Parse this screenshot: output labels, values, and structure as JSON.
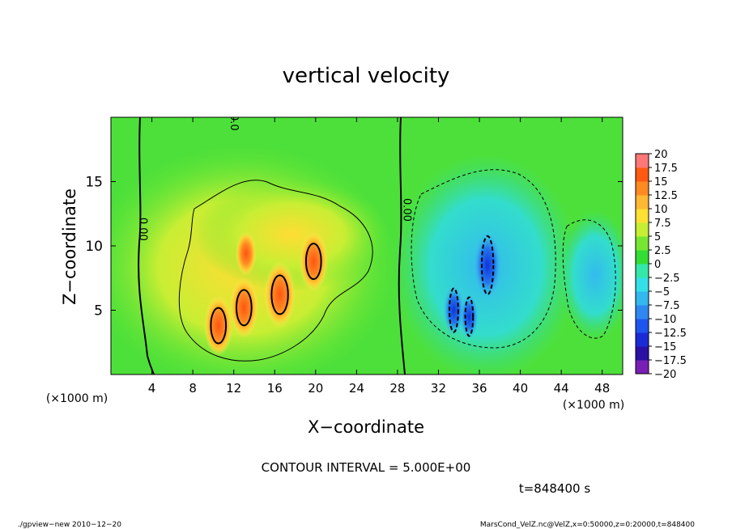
{
  "chart_data": {
    "type": "heatmap",
    "title": "vertical velocity",
    "xlabel": "X−coordinate",
    "ylabel": "Z−coordinate",
    "x_unit_left": "(×1000 m)",
    "x_unit_right": "(×1000 m)",
    "xlim": [
      0,
      50
    ],
    "ylim": [
      0,
      20
    ],
    "x_ticks": [
      4,
      8,
      12,
      16,
      20,
      24,
      28,
      32,
      36,
      40,
      44,
      48
    ],
    "y_ticks": [
      5,
      10,
      15
    ],
    "colorbar_levels": [
      -20,
      -17.5,
      -15,
      -12.5,
      -10,
      -7.5,
      -5,
      -2.5,
      0,
      2.5,
      5,
      7.5,
      10,
      12.5,
      15,
      17.5,
      20
    ],
    "colorbar_labels": [
      "20",
      "17.5",
      "15",
      "12.5",
      "10",
      "7.5",
      "5",
      "2.5",
      "0",
      "−2.5",
      "−5",
      "−7.5",
      "−10",
      "−12.5",
      "−15",
      "−17.5",
      "−20"
    ],
    "contour_labels": [
      {
        "text": "0.00",
        "x": 2.8,
        "z": 11.3
      },
      {
        "text": "0.00",
        "x": 28.6,
        "z": 12.8
      },
      {
        "text": "0.0",
        "x": 11.7,
        "z": 19.6
      }
    ],
    "contour_interval_text": "CONTOUR INTERVAL = 5.000E+00",
    "updrafts": [
      {
        "x": 10.5,
        "z": 3.8,
        "w": 11
      },
      {
        "x": 13.0,
        "z": 5.2,
        "w": 11
      },
      {
        "x": 16.5,
        "z": 6.2,
        "w": 12
      },
      {
        "x": 19.8,
        "z": 8.8,
        "w": 11
      },
      {
        "x": 13.2,
        "z": 9.4,
        "w": 8
      }
    ],
    "downdrafts": [
      {
        "x": 36.8,
        "z": 8.5,
        "w": -12
      },
      {
        "x": 33.5,
        "z": 5.0,
        "w": -9
      },
      {
        "x": 35.0,
        "z": 4.5,
        "w": -8
      }
    ]
  },
  "time_label": "t=848400 s",
  "footer_left": "./gpview−new   2010−12−20",
  "footer_right": "MarsCond_VelZ.nc@VelZ,x=0:50000,z=0:20000,t=848400",
  "colors": {
    "background_field": "#33dd33",
    "updraft_core": "#ff7700",
    "downdraft_core": "#2255ee"
  }
}
